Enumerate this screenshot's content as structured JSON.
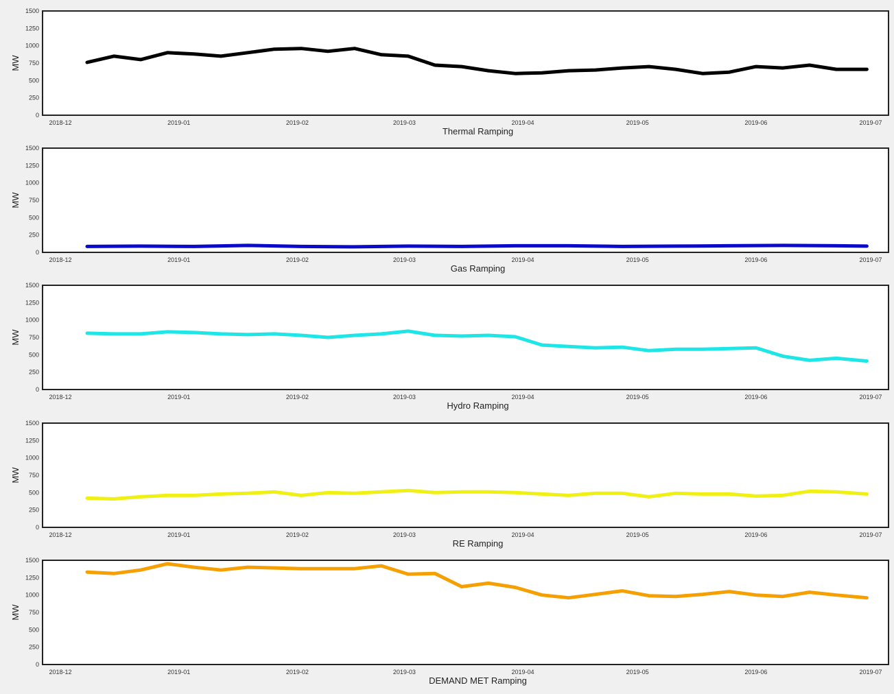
{
  "chart_data": [
    {
      "type": "line",
      "xlabel": "Thermal Ramping",
      "ylabel": "MW",
      "ylim": [
        0,
        1500
      ],
      "yticks": [
        0,
        250,
        500,
        750,
        1000,
        1250,
        1500
      ],
      "xlim": [
        "2018-12-01",
        "2019-07-01"
      ],
      "xticks": [
        "2018-12",
        "2019-01",
        "2019-02",
        "2019-03",
        "2019-04",
        "2019-05",
        "2019-06",
        "2019-07"
      ],
      "grid": false,
      "series": [
        {
          "color": "#000000",
          "x": [
            "2018-12-08",
            "2018-12-15",
            "2018-12-22",
            "2018-12-29",
            "2019-01-05",
            "2019-01-12",
            "2019-01-19",
            "2019-01-26",
            "2019-02-02",
            "2019-02-09",
            "2019-02-16",
            "2019-02-23",
            "2019-03-02",
            "2019-03-09",
            "2019-03-16",
            "2019-03-23",
            "2019-03-30",
            "2019-04-06",
            "2019-04-13",
            "2019-04-20",
            "2019-04-27",
            "2019-05-04",
            "2019-05-11",
            "2019-05-18",
            "2019-05-25",
            "2019-06-01",
            "2019-06-08",
            "2019-06-15",
            "2019-06-22",
            "2019-06-30"
          ],
          "values": [
            760,
            850,
            800,
            900,
            880,
            850,
            900,
            950,
            960,
            920,
            960,
            870,
            850,
            720,
            700,
            640,
            600,
            610,
            640,
            650,
            680,
            700,
            660,
            600,
            620,
            700,
            680,
            720,
            660,
            660
          ]
        }
      ]
    },
    {
      "type": "line",
      "xlabel": "Gas Ramping",
      "ylabel": "MW",
      "ylim": [
        0,
        1500
      ],
      "yticks": [
        0,
        250,
        500,
        750,
        1000,
        1250,
        1500
      ],
      "xlim": [
        "2018-12-01",
        "2019-07-01"
      ],
      "xticks": [
        "2018-12",
        "2019-01",
        "2019-02",
        "2019-03",
        "2019-04",
        "2019-05",
        "2019-06",
        "2019-07"
      ],
      "grid": false,
      "series": [
        {
          "color": "#0a0ac8",
          "x": [
            "2018-12-08",
            "2018-12-22",
            "2019-01-05",
            "2019-01-19",
            "2019-02-02",
            "2019-02-16",
            "2019-03-02",
            "2019-03-16",
            "2019-03-30",
            "2019-04-13",
            "2019-04-27",
            "2019-05-11",
            "2019-05-25",
            "2019-06-08",
            "2019-06-22",
            "2019-06-30"
          ],
          "values": [
            85,
            90,
            85,
            100,
            85,
            80,
            90,
            85,
            95,
            95,
            85,
            90,
            95,
            100,
            95,
            90
          ]
        }
      ]
    },
    {
      "type": "line",
      "xlabel": "Hydro Ramping",
      "ylabel": "MW",
      "ylim": [
        0,
        1500
      ],
      "yticks": [
        0,
        250,
        500,
        750,
        1000,
        1250,
        1500
      ],
      "xlim": [
        "2018-12-01",
        "2019-07-01"
      ],
      "xticks": [
        "2018-12",
        "2019-01",
        "2019-02",
        "2019-03",
        "2019-04",
        "2019-05",
        "2019-06",
        "2019-07"
      ],
      "grid": false,
      "series": [
        {
          "color": "#1ee6e6",
          "x": [
            "2018-12-08",
            "2018-12-15",
            "2018-12-22",
            "2018-12-29",
            "2019-01-05",
            "2019-01-12",
            "2019-01-19",
            "2019-01-26",
            "2019-02-02",
            "2019-02-09",
            "2019-02-16",
            "2019-02-23",
            "2019-03-02",
            "2019-03-09",
            "2019-03-16",
            "2019-03-23",
            "2019-03-30",
            "2019-04-06",
            "2019-04-13",
            "2019-04-20",
            "2019-04-27",
            "2019-05-04",
            "2019-05-11",
            "2019-05-18",
            "2019-05-25",
            "2019-06-01",
            "2019-06-08",
            "2019-06-15",
            "2019-06-22",
            "2019-06-30"
          ],
          "values": [
            810,
            800,
            800,
            830,
            820,
            800,
            790,
            800,
            780,
            750,
            780,
            800,
            840,
            780,
            770,
            780,
            760,
            640,
            620,
            600,
            610,
            560,
            580,
            580,
            590,
            600,
            480,
            420,
            450,
            410
          ]
        }
      ]
    },
    {
      "type": "line",
      "xlabel": "RE Ramping",
      "ylabel": "MW",
      "ylim": [
        0,
        1500
      ],
      "yticks": [
        0,
        250,
        500,
        750,
        1000,
        1250,
        1500
      ],
      "xlim": [
        "2018-12-01",
        "2019-07-01"
      ],
      "xticks": [
        "2018-12",
        "2019-01",
        "2019-02",
        "2019-03",
        "2019-04",
        "2019-05",
        "2019-06",
        "2019-07"
      ],
      "grid": false,
      "series": [
        {
          "color": "#f0f014",
          "x": [
            "2018-12-08",
            "2018-12-15",
            "2018-12-22",
            "2018-12-29",
            "2019-01-05",
            "2019-01-12",
            "2019-01-19",
            "2019-01-26",
            "2019-02-02",
            "2019-02-09",
            "2019-02-16",
            "2019-02-23",
            "2019-03-02",
            "2019-03-09",
            "2019-03-16",
            "2019-03-23",
            "2019-03-30",
            "2019-04-06",
            "2019-04-13",
            "2019-04-20",
            "2019-04-27",
            "2019-05-04",
            "2019-05-11",
            "2019-05-18",
            "2019-05-25",
            "2019-06-01",
            "2019-06-08",
            "2019-06-15",
            "2019-06-22",
            "2019-06-30"
          ],
          "values": [
            420,
            410,
            440,
            460,
            460,
            480,
            490,
            510,
            460,
            500,
            490,
            510,
            530,
            500,
            510,
            510,
            500,
            480,
            460,
            490,
            490,
            440,
            490,
            480,
            480,
            450,
            460,
            520,
            510,
            480
          ]
        }
      ]
    },
    {
      "type": "line",
      "xlabel": "DEMAND MET Ramping",
      "ylabel": "MW",
      "ylim": [
        0,
        1500
      ],
      "yticks": [
        0,
        250,
        500,
        750,
        1000,
        1250,
        1500
      ],
      "xlim": [
        "2018-12-01",
        "2019-07-01"
      ],
      "xticks": [
        "2018-12",
        "2019-01",
        "2019-02",
        "2019-03",
        "2019-04",
        "2019-05",
        "2019-06",
        "2019-07"
      ],
      "grid": false,
      "series": [
        {
          "color": "#f5a000",
          "x": [
            "2018-12-08",
            "2018-12-15",
            "2018-12-22",
            "2018-12-29",
            "2019-01-05",
            "2019-01-12",
            "2019-01-19",
            "2019-01-26",
            "2019-02-02",
            "2019-02-09",
            "2019-02-16",
            "2019-02-23",
            "2019-03-02",
            "2019-03-09",
            "2019-03-16",
            "2019-03-23",
            "2019-03-30",
            "2019-04-06",
            "2019-04-13",
            "2019-04-20",
            "2019-04-27",
            "2019-05-04",
            "2019-05-11",
            "2019-05-18",
            "2019-05-25",
            "2019-06-01",
            "2019-06-08",
            "2019-06-15",
            "2019-06-22",
            "2019-06-30"
          ],
          "values": [
            1330,
            1310,
            1360,
            1450,
            1400,
            1360,
            1400,
            1390,
            1380,
            1380,
            1380,
            1420,
            1300,
            1310,
            1120,
            1170,
            1110,
            1000,
            960,
            1010,
            1060,
            990,
            980,
            1010,
            1050,
            1000,
            980,
            1040,
            1000,
            960
          ]
        }
      ]
    }
  ]
}
